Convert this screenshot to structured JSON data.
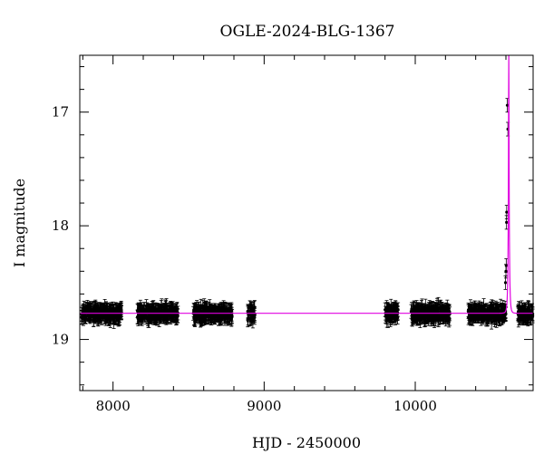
{
  "chart_data": {
    "type": "scatter",
    "title": "OGLE-2024-BLG-1367",
    "xlabel": "HJD - 2450000",
    "ylabel": "I magnitude",
    "xlim": [
      7780,
      10780
    ],
    "ylim": [
      19.45,
      16.5
    ],
    "y_inverted": true,
    "grid": false,
    "x_ticks": [
      8000,
      9000,
      10000
    ],
    "x_tick_labels": [
      "8000",
      "9000",
      "10000"
    ],
    "y_ticks": [
      17,
      18,
      19
    ],
    "y_tick_labels": [
      "17",
      "18",
      "19"
    ],
    "series": [
      {
        "kind": "observations-with-errorbars",
        "color": "#000000",
        "baseline_mag": 18.77,
        "observing_seasons": [
          {
            "start": 7790,
            "end": 8060,
            "mean_mag": 18.77
          },
          {
            "start": 8160,
            "end": 8430,
            "mean_mag": 18.77
          },
          {
            "start": 8530,
            "end": 8790,
            "mean_mag": 18.77
          },
          {
            "start": 8890,
            "end": 8940,
            "mean_mag": 18.77
          },
          {
            "start": 9800,
            "end": 9890,
            "mean_mag": 18.77
          },
          {
            "start": 9970,
            "end": 10230,
            "mean_mag": 18.77
          },
          {
            "start": 10350,
            "end": 10600,
            "mean_mag": 18.77
          },
          {
            "start": 10680,
            "end": 10780,
            "mean_mag": 18.77
          }
        ],
        "event_points": [
          {
            "x": 10597,
            "y": 18.5
          },
          {
            "x": 10600,
            "y": 18.4
          },
          {
            "x": 10602,
            "y": 18.35
          },
          {
            "x": 10604,
            "y": 17.97
          },
          {
            "x": 10605,
            "y": 17.88
          },
          {
            "x": 10609,
            "y": 16.94
          },
          {
            "x": 10613,
            "y": 17.15
          }
        ]
      },
      {
        "kind": "model-curve",
        "color": "#e000e0",
        "baseline_mag": 18.77,
        "peak_time": 10619,
        "tE_days": 7,
        "peak_mag": 16.1
      }
    ]
  }
}
